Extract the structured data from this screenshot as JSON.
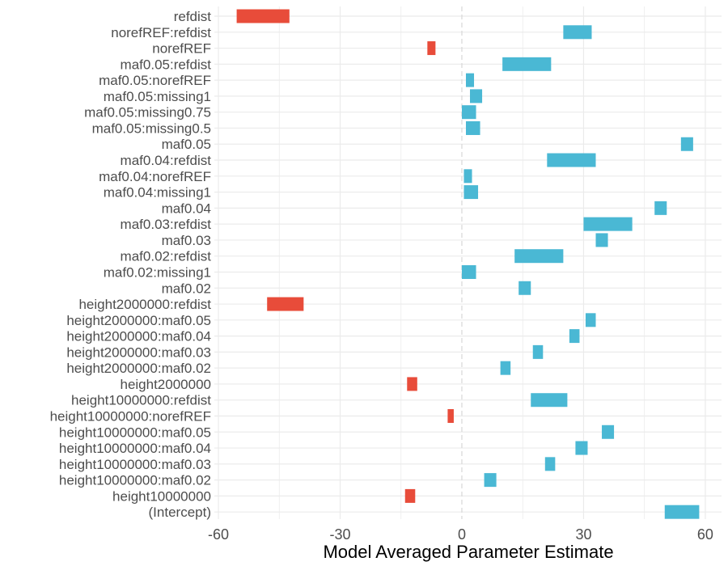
{
  "chart_data": {
    "type": "range-bar",
    "orientation": "horizontal",
    "title": "",
    "xlabel": "Model Averaged Parameter Estimate",
    "ylabel": "",
    "xlim": [
      -61,
      64
    ],
    "xticks": [
      -60,
      -30,
      0,
      30,
      60
    ],
    "grid": true,
    "zero_line": "dashed",
    "legend": "none",
    "colors": {
      "negative": "#e84c3a",
      "positive": "#4ab8d4",
      "grid": "#ebebeb",
      "zero": "#d9d9d9"
    },
    "bars": [
      {
        "label": "refdist",
        "low": -55.5,
        "high": -42.5
      },
      {
        "label": "norefREF:refdist",
        "low": 25,
        "high": 32
      },
      {
        "label": "norefREF",
        "low": -8.5,
        "high": -6.5
      },
      {
        "label": "maf0.05:refdist",
        "low": 10,
        "high": 22
      },
      {
        "label": "maf0.05:norefREF",
        "low": 1,
        "high": 3
      },
      {
        "label": "maf0.05:missing1",
        "low": 2,
        "high": 5
      },
      {
        "label": "maf0.05:missing0.75",
        "low": 0,
        "high": 3.5
      },
      {
        "label": "maf0.05:missing0.5",
        "low": 1,
        "high": 4.5
      },
      {
        "label": "maf0.05",
        "low": 54,
        "high": 57
      },
      {
        "label": "maf0.04:refdist",
        "low": 21,
        "high": 33
      },
      {
        "label": "maf0.04:norefREF",
        "low": 0.5,
        "high": 2.5
      },
      {
        "label": "maf0.04:missing1",
        "low": 0.5,
        "high": 4
      },
      {
        "label": "maf0.04",
        "low": 47.5,
        "high": 50.5
      },
      {
        "label": "maf0.03:refdist",
        "low": 30,
        "high": 42
      },
      {
        "label": "maf0.03",
        "low": 33,
        "high": 36
      },
      {
        "label": "maf0.02:refdist",
        "low": 13,
        "high": 25
      },
      {
        "label": "maf0.02:missing1",
        "low": 0,
        "high": 3.5
      },
      {
        "label": "maf0.02",
        "low": 14,
        "high": 17
      },
      {
        "label": "height2000000:refdist",
        "low": -48,
        "high": -39
      },
      {
        "label": "height2000000:maf0.05",
        "low": 30.5,
        "high": 33
      },
      {
        "label": "height2000000:maf0.04",
        "low": 26.5,
        "high": 29
      },
      {
        "label": "height2000000:maf0.03",
        "low": 17.5,
        "high": 20
      },
      {
        "label": "height2000000:maf0.02",
        "low": 9.5,
        "high": 12
      },
      {
        "label": "height2000000",
        "low": -13.5,
        "high": -11
      },
      {
        "label": "height10000000:refdist",
        "low": 17,
        "high": 26
      },
      {
        "label": "height10000000:norefREF",
        "low": -3.5,
        "high": -2
      },
      {
        "label": "height10000000:maf0.05",
        "low": 34.5,
        "high": 37.5
      },
      {
        "label": "height10000000:maf0.04",
        "low": 28,
        "high": 31
      },
      {
        "label": "height10000000:maf0.03",
        "low": 20.5,
        "high": 23
      },
      {
        "label": "height10000000:maf0.02",
        "low": 5.5,
        "high": 8.5
      },
      {
        "label": "height10000000",
        "low": -14,
        "high": -11.5
      },
      {
        "label": "(Intercept)",
        "low": 50,
        "high": 58.5
      }
    ]
  }
}
